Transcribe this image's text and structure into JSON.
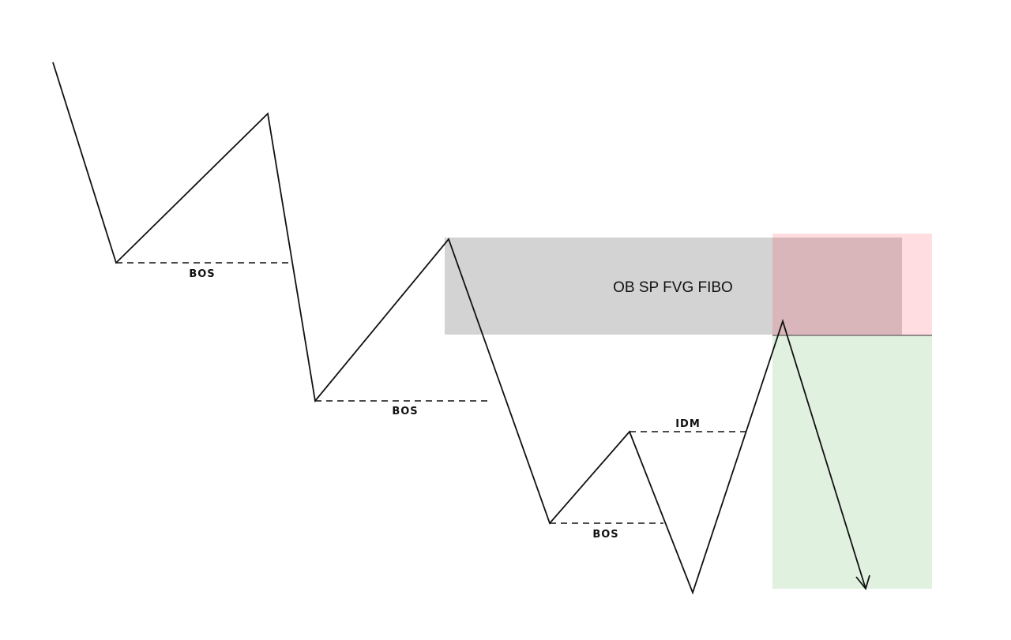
{
  "zone": {
    "label": "OB SP FVG FIBO",
    "color": "#d3d3d3"
  },
  "risk_box": {
    "color": "#ffdde1"
  },
  "reward_box": {
    "color": "#e0f1df"
  },
  "levels": [
    {
      "id": "bos-1",
      "label": "BOS"
    },
    {
      "id": "bos-2",
      "label": "BOS"
    },
    {
      "id": "bos-3",
      "label": "BOS"
    },
    {
      "id": "idm",
      "label": "IDM"
    }
  ],
  "line_color": "#111111"
}
